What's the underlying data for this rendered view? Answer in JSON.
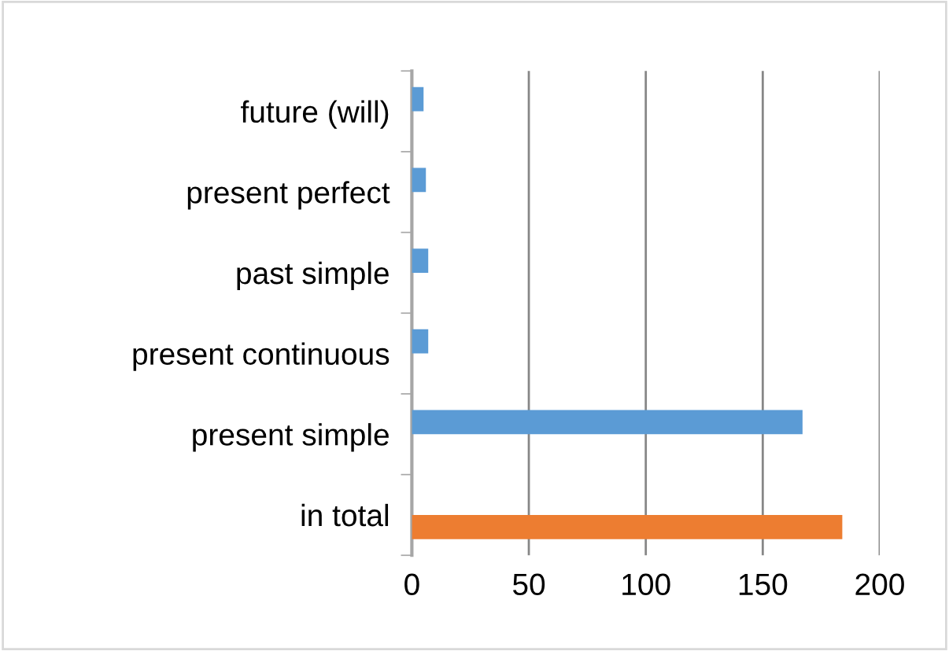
{
  "chart_data": {
    "type": "bar",
    "orientation": "horizontal",
    "categories": [
      "future (will)",
      "present perfect",
      "past simple",
      "present continuous",
      "present simple",
      "in total"
    ],
    "series": [
      {
        "color": "#5b9bd5",
        "values": [
          5,
          6,
          7,
          7,
          167,
          null
        ]
      },
      {
        "color": "#ed7d31",
        "values": [
          null,
          null,
          null,
          null,
          null,
          184
        ]
      }
    ],
    "xlim": [
      0,
      200
    ],
    "xticks": [
      0,
      50,
      100,
      150,
      200
    ],
    "grid": "x",
    "legend": false
  }
}
